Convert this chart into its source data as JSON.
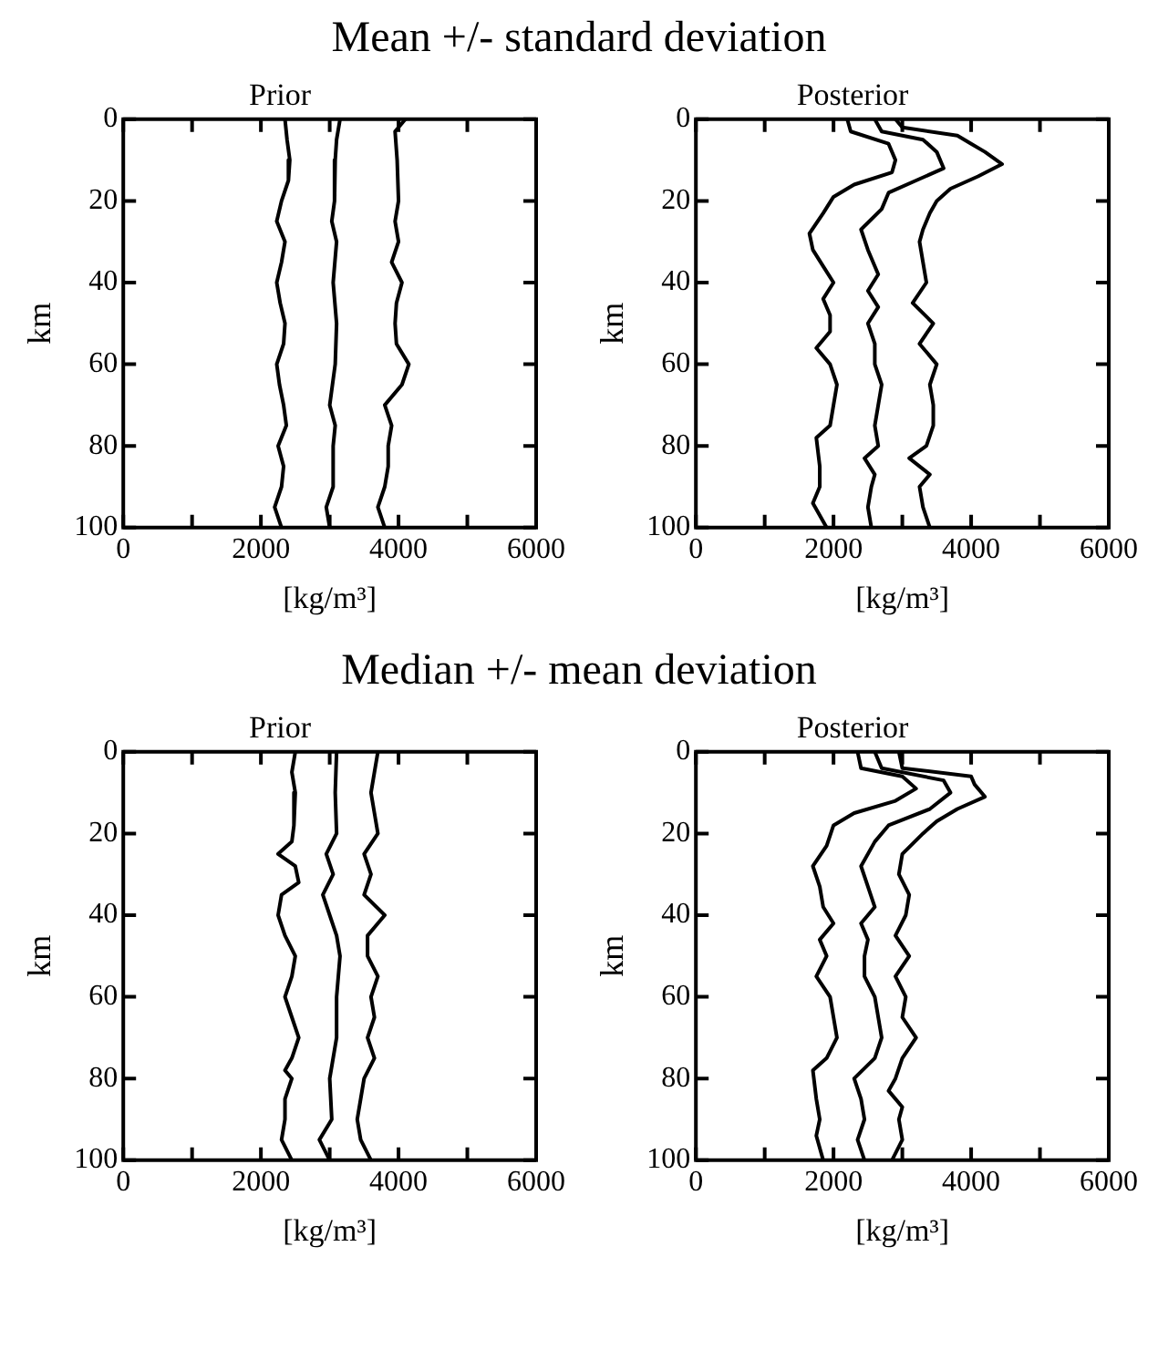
{
  "chart_data": [
    {
      "type": "line",
      "title": "Mean +/- standard deviation",
      "subtitle": "Prior",
      "xlabel": "[kg/m³]",
      "ylabel": "km",
      "xlim": [
        0,
        6000
      ],
      "xticks": [
        0,
        {
          "value": 1000,
          "label": null
        },
        2000,
        {
          "value": 3000,
          "label": null
        },
        4000,
        {
          "value": 5000,
          "label": null
        },
        6000
      ],
      "ylim": [
        100,
        0
      ],
      "yticks": [
        0,
        20,
        40,
        60,
        80,
        100
      ],
      "grid": false,
      "legend": false,
      "series": [
        {
          "color": "#000000",
          "x": [
            2350,
            2380,
            2420,
            2400,
            2300,
            2230,
            2350,
            2300,
            2230,
            2280,
            2350,
            2330,
            2230,
            2270,
            2330,
            2370,
            2250,
            2330,
            2300,
            2200,
            2300
          ],
          "values": [
            0,
            5,
            10,
            15,
            20,
            25,
            30,
            35,
            40,
            45,
            50,
            55,
            60,
            65,
            70,
            75,
            80,
            85,
            90,
            95,
            100
          ]
        },
        {
          "color": "#000000",
          "x": [
            3150,
            3100,
            3080,
            3070,
            3030,
            3100,
            3050,
            3100,
            3080,
            3000,
            3080,
            3050,
            3050,
            2950,
            3000
          ],
          "values": [
            0,
            5,
            10,
            20,
            25,
            30,
            40,
            50,
            60,
            70,
            75,
            80,
            90,
            95,
            100
          ]
        },
        {
          "color": "#000000",
          "x": [
            4100,
            3950,
            3980,
            4000,
            3950,
            4000,
            3900,
            4050,
            3970,
            3950,
            3970,
            4150,
            4050,
            3800,
            3900,
            3850,
            3850,
            3800,
            3700,
            3800
          ],
          "values": [
            0,
            3,
            10,
            20,
            25,
            30,
            35,
            40,
            45,
            50,
            55,
            60,
            65,
            70,
            75,
            80,
            85,
            90,
            95,
            100
          ]
        }
      ]
    },
    {
      "type": "line",
      "subtitle": "Posterior",
      "xlabel": "[kg/m³]",
      "ylabel": "km",
      "xlim": [
        0,
        6000
      ],
      "xticks": [
        0,
        {
          "value": 1000,
          "label": null
        },
        2000,
        {
          "value": 3000,
          "label": null
        },
        4000,
        {
          "value": 5000,
          "label": null
        },
        6000
      ],
      "ylim": [
        100,
        0
      ],
      "yticks": [
        0,
        20,
        40,
        60,
        80,
        100
      ],
      "grid": false,
      "legend": false,
      "series": [
        {
          "color": "#000000",
          "x": [
            2200,
            2250,
            2800,
            2900,
            2850,
            2300,
            2000,
            1850,
            1650,
            1700,
            1850,
            2000,
            1850,
            1950,
            1950,
            1750,
            1950,
            2050,
            2000,
            1950,
            1750,
            1800,
            1800,
            1700,
            1900
          ],
          "values": [
            0,
            3,
            6,
            10,
            13,
            16,
            19,
            23,
            28,
            32,
            36,
            40,
            44,
            48,
            52,
            56,
            60,
            65,
            70,
            75,
            78,
            85,
            90,
            94,
            100
          ]
        },
        {
          "color": "#000000",
          "x": [
            2600,
            2700,
            3300,
            3500,
            3600,
            3200,
            2800,
            2700,
            2400,
            2500,
            2650,
            2500,
            2650,
            2500,
            2600,
            2600,
            2700,
            2650,
            2600,
            2650,
            2450,
            2600,
            2550,
            2500,
            2550
          ],
          "values": [
            0,
            3,
            5,
            8,
            12,
            15,
            18,
            22,
            27,
            32,
            38,
            42,
            46,
            50,
            55,
            60,
            65,
            70,
            75,
            80,
            83,
            87,
            90,
            95,
            100
          ]
        },
        {
          "color": "#000000",
          "x": [
            2900,
            3000,
            3800,
            4000,
            4200,
            4450,
            4100,
            3700,
            3500,
            3400,
            3300,
            3250,
            3300,
            3350,
            3150,
            3450,
            3250,
            3500,
            3400,
            3450,
            3450,
            3350,
            3100,
            3400,
            3250,
            3300,
            3400
          ],
          "values": [
            0,
            2,
            4,
            6,
            8,
            11,
            14,
            17,
            20,
            23,
            27,
            30,
            35,
            40,
            45,
            50,
            55,
            60,
            65,
            70,
            75,
            80,
            83,
            87,
            90,
            95,
            100
          ]
        }
      ]
    },
    {
      "type": "line",
      "title": "Median +/- mean deviation",
      "subtitle": "Prior",
      "xlabel": "[kg/m³]",
      "ylabel": "km",
      "xlim": [
        0,
        6000
      ],
      "xticks": [
        0,
        {
          "value": 1000,
          "label": null
        },
        2000,
        {
          "value": 3000,
          "label": null
        },
        4000,
        {
          "value": 5000,
          "label": null
        },
        6000
      ],
      "ylim": [
        100,
        0
      ],
      "yticks": [
        0,
        20,
        40,
        60,
        80,
        100
      ],
      "grid": false,
      "legend": false,
      "series": [
        {
          "color": "#000000",
          "x": [
            2500,
            2450,
            2500,
            2480,
            2450,
            2250,
            2500,
            2550,
            2300,
            2250,
            2350,
            2500,
            2450,
            2350,
            2450,
            2550,
            2450,
            2350,
            2450,
            2350,
            2350,
            2300,
            2450
          ],
          "values": [
            0,
            5,
            10,
            18,
            22,
            25,
            28,
            32,
            35,
            40,
            45,
            50,
            55,
            60,
            65,
            70,
            75,
            78,
            80,
            85,
            90,
            95,
            100
          ]
        },
        {
          "color": "#000000",
          "x": [
            3100,
            3080,
            3100,
            2950,
            3050,
            2900,
            3000,
            3100,
            3150,
            3100,
            3100,
            3000,
            3030,
            2850,
            3000
          ],
          "values": [
            0,
            10,
            20,
            25,
            30,
            35,
            40,
            45,
            50,
            60,
            70,
            80,
            90,
            95,
            100
          ]
        },
        {
          "color": "#000000",
          "x": [
            3700,
            3650,
            3600,
            3650,
            3700,
            3500,
            3600,
            3500,
            3800,
            3550,
            3550,
            3700,
            3600,
            3650,
            3550,
            3650,
            3500,
            3450,
            3400,
            3450,
            3600
          ],
          "values": [
            0,
            5,
            10,
            15,
            20,
            25,
            30,
            35,
            40,
            45,
            50,
            55,
            60,
            65,
            70,
            75,
            80,
            85,
            90,
            95,
            100
          ]
        }
      ]
    },
    {
      "type": "line",
      "subtitle": "Posterior",
      "xlabel": "[kg/m³]",
      "ylabel": "km",
      "xlim": [
        0,
        6000
      ],
      "xticks": [
        0,
        {
          "value": 1000,
          "label": null
        },
        2000,
        {
          "value": 3000,
          "label": null
        },
        4000,
        {
          "value": 5000,
          "label": null
        },
        6000
      ],
      "ylim": [
        100,
        0
      ],
      "yticks": [
        0,
        20,
        40,
        60,
        80,
        100
      ],
      "grid": false,
      "legend": false,
      "series": [
        {
          "color": "#000000",
          "x": [
            2350,
            2400,
            3000,
            3200,
            2900,
            2300,
            2000,
            1900,
            1700,
            1800,
            1850,
            2000,
            1800,
            1900,
            1750,
            1950,
            2000,
            2050,
            1900,
            1700,
            1750,
            1800,
            1750,
            1850
          ],
          "values": [
            0,
            4,
            6,
            9,
            12,
            15,
            18,
            23,
            28,
            33,
            38,
            42,
            46,
            50,
            55,
            60,
            65,
            70,
            75,
            78,
            85,
            90,
            94,
            100
          ]
        },
        {
          "color": "#000000",
          "x": [
            2600,
            2700,
            3600,
            3700,
            3400,
            2800,
            2600,
            2400,
            2500,
            2600,
            2400,
            2500,
            2450,
            2450,
            2600,
            2650,
            2700,
            2600,
            2300,
            2400,
            2450,
            2350,
            2450
          ],
          "values": [
            0,
            4,
            7,
            10,
            14,
            18,
            22,
            28,
            33,
            38,
            42,
            46,
            50,
            55,
            60,
            65,
            70,
            75,
            80,
            85,
            90,
            95,
            100
          ]
        },
        {
          "color": "#000000",
          "x": [
            2950,
            3000,
            4000,
            4050,
            4200,
            3800,
            3500,
            3300,
            3000,
            2950,
            3100,
            3050,
            2900,
            3100,
            2900,
            3050,
            3000,
            3200,
            3000,
            2900,
            2800,
            3000,
            2950,
            3000,
            2850
          ],
          "values": [
            0,
            4,
            6,
            8,
            11,
            14,
            17,
            20,
            25,
            30,
            35,
            40,
            45,
            50,
            55,
            60,
            65,
            70,
            75,
            80,
            83,
            87,
            90,
            95,
            100
          ]
        }
      ]
    }
  ]
}
